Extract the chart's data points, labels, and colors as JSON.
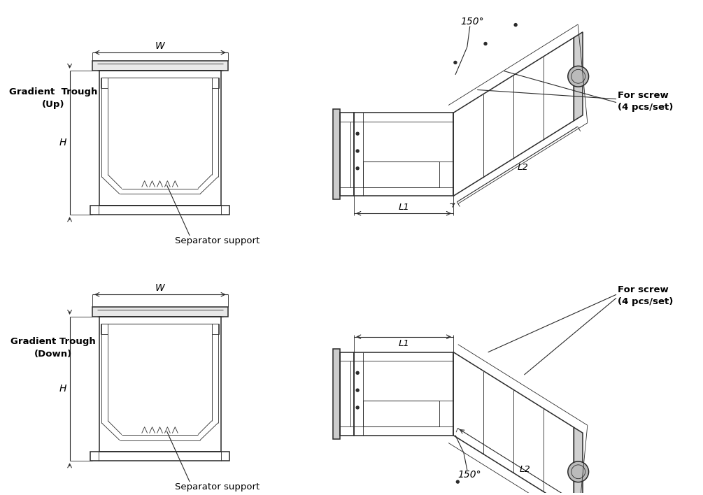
{
  "bg_color": "#ffffff",
  "line_color": "#2a2a2a",
  "lw_thin": 0.6,
  "lw_med": 1.1,
  "lw_thick": 1.5,
  "front_view": {
    "trough_up": {
      "label1": "Gradient  Trough",
      "label2": "(Up)"
    },
    "trough_down": {
      "label1": "Gradient Trough",
      "label2": "(Down)"
    },
    "sep_label": "Separator support",
    "W_label": "W",
    "H_label": "H"
  },
  "side_view": {
    "angle_label": "150°",
    "L1_label": "L1",
    "L2_label": "L2",
    "screw_label1": "For screw",
    "screw_label2": "(4 pcs/set)"
  }
}
